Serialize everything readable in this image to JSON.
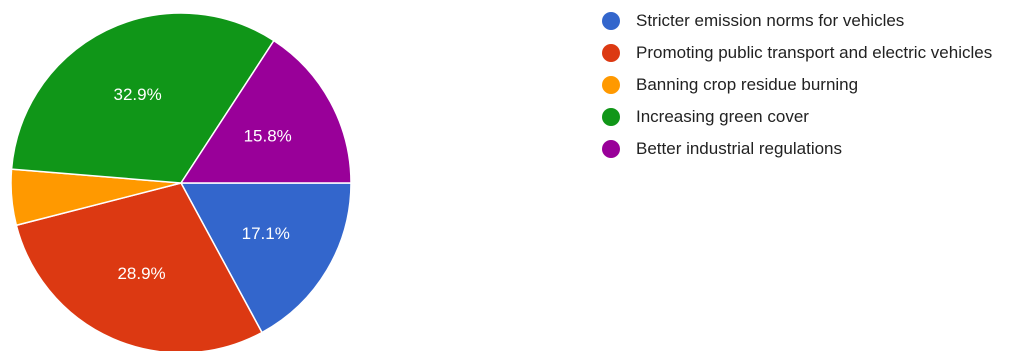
{
  "chart_data": {
    "type": "pie",
    "title": "",
    "legend_placement": "right",
    "slices": [
      {
        "label": "Stricter emission norms for vehicles",
        "value": 17.1,
        "value_label": "17.1%",
        "color": "#3366cc"
      },
      {
        "label": "Promoting public transport and electric vehicles",
        "value": 28.9,
        "value_label": "28.9%",
        "color": "#dc3912"
      },
      {
        "label": "Banning crop residue burning",
        "value": 5.3,
        "value_label": "",
        "color": "#ff9900"
      },
      {
        "label": "Increasing green cover",
        "value": 32.9,
        "value_label": "32.9%",
        "color": "#109618"
      },
      {
        "label": "Better industrial regulations",
        "value": 15.8,
        "value_label": "15.8%",
        "color": "#990099"
      }
    ]
  }
}
